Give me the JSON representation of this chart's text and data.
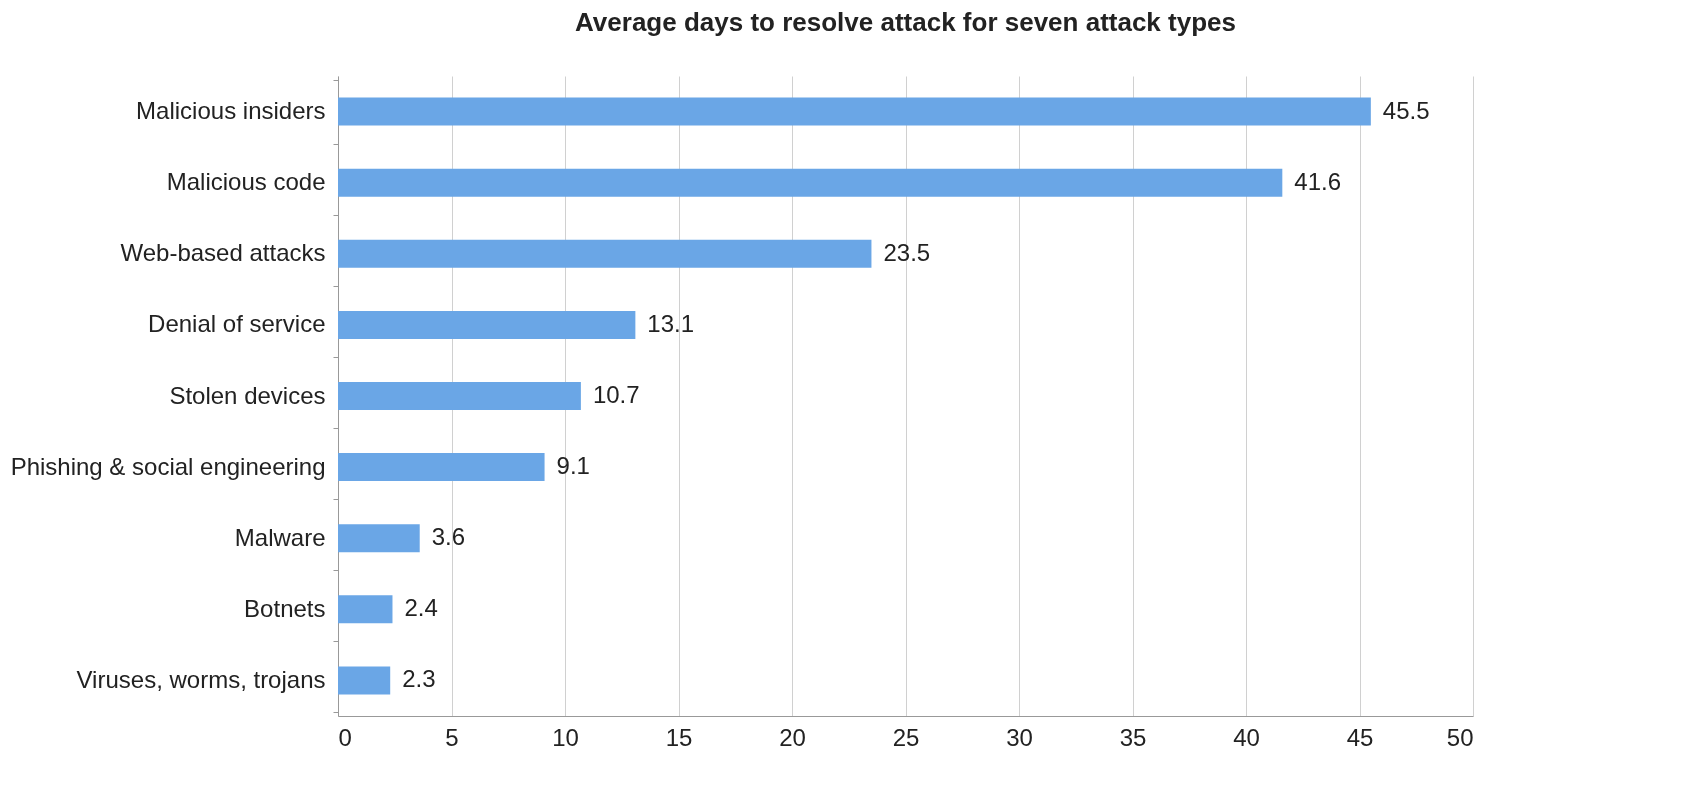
{
  "chart_data": {
    "type": "bar",
    "orientation": "horizontal",
    "title": "Average days to resolve attack for seven attack types",
    "categories": [
      "Malicious insiders",
      "Malicious code",
      "Web-based attacks",
      "Denial of service",
      "Stolen devices",
      "Phishing & social engineering",
      "Malware",
      "Botnets",
      "Viruses, worms, trojans"
    ],
    "values": [
      45.5,
      41.6,
      23.5,
      13.1,
      10.7,
      9.1,
      3.6,
      2.4,
      2.3
    ],
    "color": "#6aa6e6",
    "xlim": [
      0,
      50
    ],
    "xticks": [
      0,
      5,
      10,
      15,
      20,
      25,
      30,
      35,
      40,
      45,
      50
    ],
    "grid": "x",
    "data_labels": true
  }
}
